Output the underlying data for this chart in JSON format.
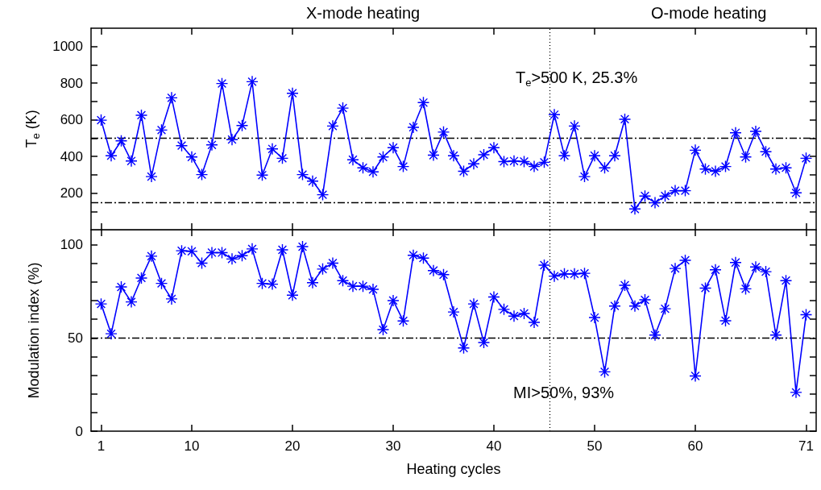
{
  "chart_data": [
    {
      "type": "line",
      "ylabel": "T$_{e}$ (K)",
      "annotations": [
        "X-mode heating",
        "O-mode heating",
        "T$_{e}$>500 K, 25.3%"
      ],
      "x": [
        1,
        2,
        3,
        4,
        5,
        6,
        7,
        8,
        9,
        10,
        11,
        12,
        13,
        14,
        15,
        16,
        17,
        18,
        19,
        20,
        21,
        22,
        23,
        24,
        25,
        26,
        27,
        28,
        29,
        30,
        31,
        32,
        33,
        34,
        35,
        36,
        37,
        38,
        39,
        40,
        41,
        42,
        43,
        44,
        45,
        46,
        47,
        48,
        49,
        50,
        51,
        52,
        53,
        54,
        55,
        56,
        57,
        58,
        59,
        60,
        61,
        62,
        63,
        64,
        65,
        66,
        67,
        68,
        69,
        70,
        71
      ],
      "series": [
        {
          "color": "#0000ff",
          "values": [
            598,
            404,
            485,
            375,
            625,
            290,
            544,
            720,
            459,
            397,
            301,
            463,
            798,
            492,
            569,
            808,
            298,
            441,
            390,
            745,
            301,
            265,
            191,
            566,
            664,
            382,
            338,
            316,
            397,
            448,
            345,
            559,
            694,
            407,
            533,
            404,
            319,
            360,
            409,
            448,
            372,
            375,
            372,
            345,
            368,
            628,
            404,
            566,
            290,
            404,
            338,
            404,
            603,
            113,
            184,
            147,
            184,
            213,
            213,
            434,
            331,
            319,
            345,
            529,
            397,
            537,
            426,
            331,
            338,
            201,
            390
          ]
        }
      ],
      "marker": "cross",
      "xlim": [
        0,
        72
      ],
      "xticks": [
        1,
        10,
        20,
        30,
        40,
        50,
        60,
        71
      ],
      "ylim": [
        0,
        1100
      ],
      "yticks": [
        {
          "value": 100,
          "label": null
        },
        200,
        {
          "value": 300,
          "label": null
        },
        400,
        {
          "value": 500,
          "label": null
        },
        600,
        {
          "value": 700,
          "label": null
        },
        800,
        {
          "value": 900,
          "label": null
        },
        1000
      ],
      "tick_labels": "y",
      "ref_lines": [
        {
          "axis": "y",
          "value": 500,
          "line_style": "dashed",
          "color": "#000000"
        },
        {
          "axis": "y",
          "value": 150,
          "line_style": "dashed",
          "color": "#000000"
        },
        {
          "axis": "x",
          "value": 45.5,
          "line_style": "dotted",
          "color": "#000000"
        }
      ]
    },
    {
      "type": "line",
      "xlabel": "Heating cycles",
      "ylabel": "Modulation index (%)",
      "annotations": [
        "MI>50%, 93%"
      ],
      "x": [
        1,
        2,
        3,
        4,
        5,
        6,
        7,
        8,
        9,
        10,
        11,
        12,
        13,
        14,
        15,
        16,
        17,
        18,
        19,
        20,
        21,
        22,
        23,
        24,
        25,
        26,
        27,
        28,
        29,
        30,
        31,
        32,
        33,
        34,
        35,
        36,
        37,
        38,
        39,
        40,
        41,
        42,
        43,
        44,
        45,
        46,
        47,
        48,
        49,
        50,
        51,
        52,
        53,
        54,
        55,
        56,
        57,
        58,
        59,
        60,
        61,
        62,
        63,
        64,
        65,
        66,
        67,
        68,
        69,
        70,
        71
      ],
      "series": [
        {
          "color": "#0000ff",
          "values": [
            68.2,
            52.2,
            77.3,
            69.3,
            82.1,
            93.8,
            79.2,
            70.9,
            96.7,
            96.4,
            90.1,
            95.7,
            95.7,
            92.3,
            94.1,
            97.7,
            79.2,
            78.8,
            97.2,
            72.9,
            98.9,
            79.6,
            86.9,
            90.1,
            80.7,
            77.7,
            77.7,
            76.0,
            54.4,
            70.0,
            59.1,
            94.3,
            92.8,
            86.1,
            83.9,
            63.9,
            44.6,
            68.2,
            47.5,
            71.9,
            65.3,
            61.7,
            63.1,
            58.3,
            89.0,
            83.1,
            84.3,
            84.3,
            84.6,
            60.9,
            31.8,
            67.1,
            78.2,
            67.1,
            70.4,
            51.5,
            65.6,
            87.2,
            91.6,
            29.6,
            76.7,
            86.5,
            59.2,
            90.4,
            76.3,
            88.0,
            85.5,
            51.5,
            80.7,
            20.8,
            62.4
          ]
        }
      ],
      "marker": "cross",
      "xlim": [
        0,
        72
      ],
      "xticks": [
        1,
        10,
        20,
        30,
        40,
        50,
        60,
        71
      ],
      "ylim": [
        0,
        108
      ],
      "yticks": [
        0,
        {
          "value": 10,
          "label": null
        },
        {
          "value": 20,
          "label": null
        },
        {
          "value": 30,
          "label": null
        },
        {
          "value": 40,
          "label": null
        },
        50,
        {
          "value": 60,
          "label": null
        },
        {
          "value": 70,
          "label": null
        },
        {
          "value": 80,
          "label": null
        },
        {
          "value": 90,
          "label": null
        },
        100
      ],
      "ref_lines": [
        {
          "axis": "y",
          "value": 50,
          "line_style": "dashed",
          "color": "#000000"
        },
        {
          "axis": "x",
          "value": 45.5,
          "line_style": "dotted",
          "color": "#000000"
        }
      ]
    }
  ]
}
